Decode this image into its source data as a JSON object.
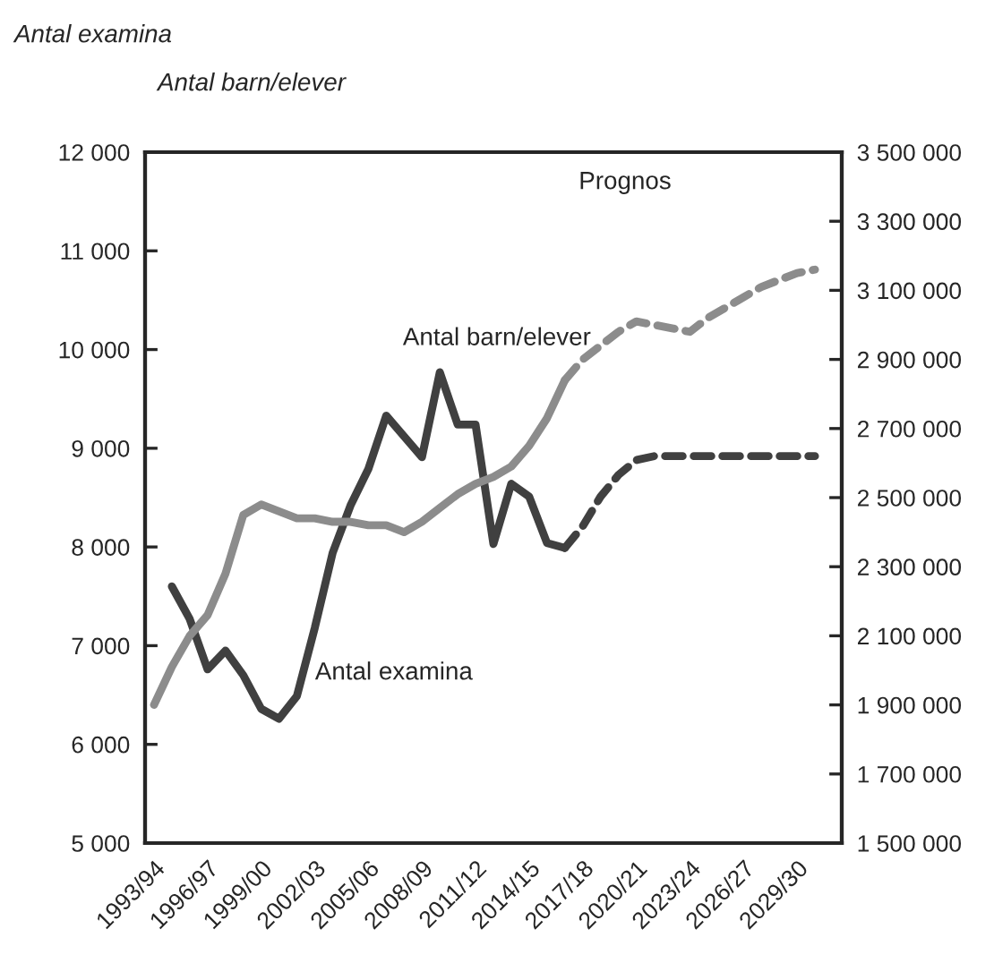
{
  "chart_data": {
    "type": "line",
    "annotations": [
      "Antal examina",
      "Antal barn/elever",
      "Prognos"
    ],
    "categories": [
      "1993/94",
      null,
      null,
      "1996/97",
      null,
      null,
      "1999/00",
      null,
      null,
      "2002/03",
      null,
      null,
      "2005/06",
      null,
      null,
      "2008/09",
      null,
      null,
      "2011/12",
      null,
      null,
      "2014/15",
      null,
      null,
      "2017/18",
      null,
      null,
      "2020/21",
      null,
      null,
      "2023/24",
      null,
      null,
      "2026/27",
      null,
      null,
      "2029/30",
      null,
      null
    ],
    "series": [
      {
        "name": "Antal examina",
        "color": "#404040",
        "line_style": "solid",
        "values": [
          null,
          7600,
          7270,
          6760,
          6950,
          6700,
          6360,
          6260,
          6490,
          7180,
          7940,
          8420,
          8790,
          9330,
          9120,
          8910,
          9770,
          9240,
          9240,
          8030,
          8640,
          8510,
          8040,
          7990,
          null,
          null,
          null,
          null,
          null,
          null,
          null,
          null,
          null,
          null,
          null,
          null,
          null,
          null,
          null
        ]
      },
      {
        "color": "#404040",
        "line_style": "dashed",
        "values": [
          null,
          null,
          null,
          null,
          null,
          null,
          null,
          null,
          null,
          null,
          null,
          null,
          null,
          null,
          null,
          null,
          null,
          null,
          null,
          null,
          null,
          null,
          null,
          7990,
          8210,
          8510,
          8730,
          8880,
          8920,
          8920,
          8920,
          8920,
          8920,
          8920,
          8920,
          8920,
          8920,
          8920,
          null
        ]
      },
      {
        "name": "Antal barn/elever",
        "color": "#8c8c8c",
        "axis": "y2",
        "line_style": "solid",
        "values": [
          1900000,
          2010000,
          2100000,
          2160000,
          2280000,
          2450000,
          2480000,
          2460000,
          2440000,
          2440000,
          2430000,
          2430000,
          2420000,
          2420000,
          2400000,
          2430000,
          2470000,
          2510000,
          2540000,
          2560000,
          2590000,
          2650000,
          2730000,
          2840000,
          null,
          null,
          null,
          null,
          null,
          null,
          null,
          null,
          null,
          null,
          null,
          null,
          null,
          null,
          null
        ]
      },
      {
        "color": "#8c8c8c",
        "axis": "y2",
        "line_style": "dashed",
        "values": [
          null,
          null,
          null,
          null,
          null,
          null,
          null,
          null,
          null,
          null,
          null,
          null,
          null,
          null,
          null,
          null,
          null,
          null,
          null,
          null,
          null,
          null,
          null,
          2840000,
          2900000,
          2940000,
          2980000,
          3010000,
          3000000,
          2990000,
          2980000,
          3020000,
          3050000,
          3080000,
          3110000,
          3130000,
          3150000,
          3160000,
          null
        ]
      }
    ],
    "ylim": [
      5000,
      12000
    ],
    "yticks": [
      {
        "value": 5000,
        "label": "5 000"
      },
      {
        "value": 6000,
        "label": "6 000"
      },
      {
        "value": 7000,
        "label": "7 000"
      },
      {
        "value": 8000,
        "label": "8 000"
      },
      {
        "value": 9000,
        "label": "9 000"
      },
      {
        "value": 10000,
        "label": "10 000"
      },
      {
        "value": 11000,
        "label": "11 000"
      },
      {
        "value": 12000,
        "label": "12 000"
      }
    ],
    "y2lim": [
      1500000,
      3500000
    ],
    "y2ticks": [
      {
        "value": 1500000,
        "label": "1 500 000"
      },
      {
        "value": 1700000,
        "label": "1 700 000"
      },
      {
        "value": 1900000,
        "label": "1 900 000"
      },
      {
        "value": 2100000,
        "label": "2 100 000"
      },
      {
        "value": 2300000,
        "label": "2 300 000"
      },
      {
        "value": 2500000,
        "label": "2 500 000"
      },
      {
        "value": 2700000,
        "label": "2 700 000"
      },
      {
        "value": 2900000,
        "label": "2 900 000"
      },
      {
        "value": 3100000,
        "label": "3 100 000"
      },
      {
        "value": 3300000,
        "label": "3 300 000"
      },
      {
        "value": 3500000,
        "label": "3 500 000"
      }
    ],
    "grid": false,
    "legend": false,
    "marker": "none"
  }
}
